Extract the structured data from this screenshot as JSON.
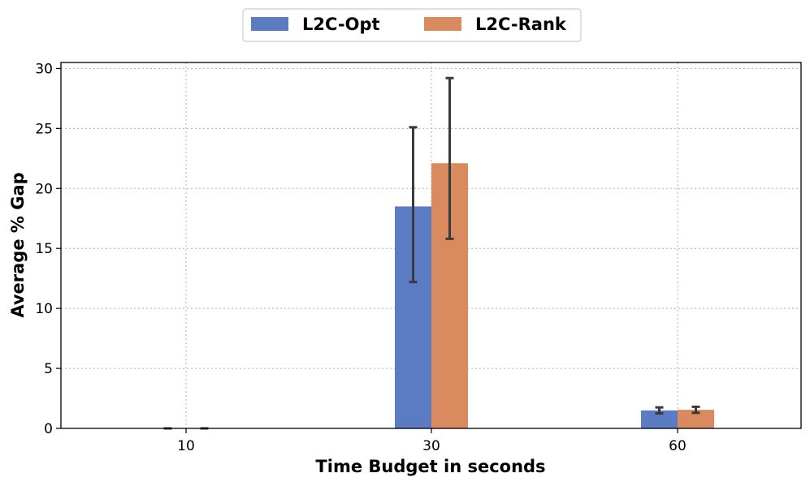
{
  "chart_data": {
    "type": "bar",
    "title": "",
    "xlabel": "Time Budget in seconds",
    "ylabel": "Average % Gap",
    "categories": [
      "10",
      "30",
      "60"
    ],
    "ylim": [
      0,
      30.5
    ],
    "yticks": [
      0,
      5,
      10,
      15,
      20,
      25,
      30
    ],
    "grid": true,
    "legend_position": "top-center",
    "series": [
      {
        "name": "L2C-Opt",
        "color": "#5b7cc2",
        "values": [
          0,
          18.5,
          1.5
        ],
        "error_low": [
          0,
          12.2,
          1.25
        ],
        "error_high": [
          0,
          25.1,
          1.75
        ]
      },
      {
        "name": "L2C-Rank",
        "color": "#d98a5f",
        "values": [
          0,
          22.1,
          1.55
        ],
        "error_low": [
          0,
          15.8,
          1.3
        ],
        "error_high": [
          0,
          29.2,
          1.8
        ]
      }
    ]
  }
}
